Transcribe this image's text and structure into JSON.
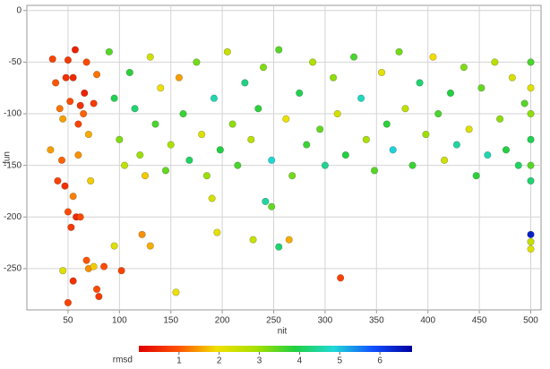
{
  "chart_data": {
    "type": "scatter",
    "x_label": "nit",
    "y_label": "fun",
    "xlim": [
      10,
      510
    ],
    "xticks": [
      50,
      100,
      150,
      200,
      250,
      300,
      350,
      400,
      450,
      500
    ],
    "ylim": [
      -290,
      5
    ],
    "yticks": [
      0,
      -50,
      -100,
      -150,
      -200,
      -250
    ],
    "grid": true,
    "colorbar_label": "rmsd",
    "clim": [
      0,
      6.8
    ],
    "cticks": [
      1,
      2,
      3,
      4,
      5,
      6
    ],
    "colormap": [
      "#e00000",
      "#ff5000",
      "#f0e000",
      "#a8e000",
      "#20d040",
      "#20d8d8",
      "#1050ff",
      "#0000a0"
    ],
    "x": [
      35,
      38,
      42,
      45,
      48,
      50,
      52,
      55,
      57,
      60,
      62,
      65,
      68,
      70,
      75,
      78,
      40,
      44,
      47,
      50,
      53,
      55,
      58,
      62,
      45,
      50,
      55,
      68,
      70,
      75,
      78,
      80,
      85,
      102,
      33,
      60,
      72,
      66,
      90,
      95,
      100,
      105,
      110,
      115,
      120,
      125,
      130,
      135,
      140,
      145,
      150,
      158,
      162,
      168,
      175,
      180,
      185,
      192,
      198,
      205,
      210,
      215,
      222,
      228,
      235,
      240,
      248,
      255,
      262,
      268,
      275,
      282,
      288,
      295,
      300,
      308,
      312,
      320,
      328,
      335,
      340,
      348,
      355,
      360,
      366,
      372,
      378,
      385,
      392,
      398,
      405,
      410,
      416,
      422,
      428,
      435,
      440,
      447,
      452,
      458,
      465,
      470,
      476,
      482,
      488,
      494,
      500,
      500,
      500,
      500,
      500,
      500,
      500,
      500,
      500,
      95,
      122,
      130,
      155,
      195,
      190,
      230,
      242,
      248,
      255,
      265,
      315
    ],
    "y": [
      -47,
      -70,
      -95,
      -105,
      -65,
      -48,
      -88,
      -65,
      -38,
      -110,
      -92,
      -100,
      -50,
      -120,
      -90,
      -62,
      -165,
      -145,
      -170,
      -195,
      -210,
      -180,
      -200,
      -200,
      -252,
      -283,
      -262,
      -242,
      -250,
      -248,
      -270,
      -277,
      -248,
      -252,
      -135,
      -140,
      -165,
      -80,
      -40,
      -85,
      -125,
      -150,
      -60,
      -95,
      -140,
      -160,
      -45,
      -110,
      -75,
      -155,
      -130,
      -65,
      -100,
      -145,
      -50,
      -120,
      -160,
      -85,
      -135,
      -40,
      -110,
      -150,
      -70,
      -125,
      -95,
      -55,
      -145,
      -38,
      -105,
      -160,
      -80,
      -130,
      -50,
      -115,
      -150,
      -65,
      -100,
      -140,
      -45,
      -85,
      -125,
      -155,
      -60,
      -110,
      -135,
      -40,
      -95,
      -150,
      -70,
      -120,
      -45,
      -100,
      -145,
      -80,
      -130,
      -55,
      -115,
      -160,
      -75,
      -140,
      -50,
      -105,
      -135,
      -65,
      -150,
      -90,
      -50,
      -75,
      -100,
      -125,
      -150,
      -165,
      -217,
      -231,
      -224,
      -228,
      -217,
      -228,
      -273,
      -215,
      -182,
      -222,
      -185,
      -190,
      -229,
      -222,
      -259
    ],
    "rmsd": [
      0.8,
      1,
      1.2,
      1.5,
      0.6,
      0.7,
      0.9,
      0.5,
      0.4,
      0.8,
      0.6,
      1.1,
      0.9,
      1.6,
      0.7,
      1.2,
      0.8,
      1.1,
      0.6,
      0.9,
      0.7,
      1.3,
      0.5,
      0.9,
      2.2,
      0.8,
      0.6,
      1,
      1.4,
      1.8,
      0.9,
      0.7,
      0.9,
      0.8,
      1.5,
      1.4,
      1.8,
      0.4,
      3.5,
      4,
      3.2,
      2.6,
      3.8,
      4.2,
      3,
      1.8,
      2.4,
      3.6,
      2,
      3.4,
      2.9,
      1.5,
      3.7,
      4.1,
      3.3,
      2.2,
      3,
      4.6,
      3.9,
      2.5,
      3.1,
      3.6,
      4.3,
      2.7,
      3.8,
      3.2,
      4.8,
      3.5,
      2,
      3.3,
      4,
      3.7,
      2.8,
      3.4,
      4.4,
      3.1,
      2.3,
      3.9,
      3.6,
      4.7,
      2.9,
      3.5,
      2.1,
      3.8,
      4.9,
      3.3,
      2.6,
      3.7,
      4.2,
      3,
      1.9,
      3.6,
      2.4,
      3.9,
      4.5,
      3.2,
      2.2,
      3.8,
      3.4,
      4.6,
      2.7,
      3.1,
      3.9,
      2.3,
      4.1,
      3.5,
      3.6,
      2.2,
      3.1,
      4,
      3.5,
      4.2,
      6.4,
      2.2,
      2.5,
      2.2,
      1.4,
      1.6,
      2,
      2.1,
      2.3,
      2.5,
      4.5,
      3.4,
      4.2,
      1.6,
      0.8
    ]
  }
}
